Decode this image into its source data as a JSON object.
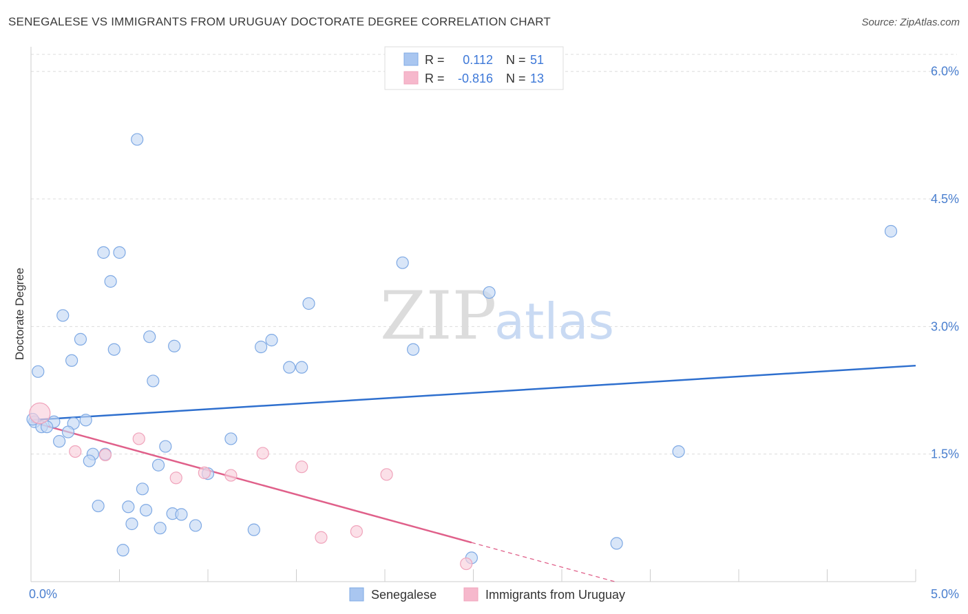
{
  "title": "SENEGALESE VS IMMIGRANTS FROM URUGUAY DOCTORATE DEGREE CORRELATION CHART",
  "source": "Source: ZipAtlas.com",
  "watermark": {
    "zip": "ZIP",
    "atlas": "atlas"
  },
  "chart_data": {
    "type": "scatter",
    "title": "SENEGALESE VS IMMIGRANTS FROM URUGUAY DOCTORATE DEGREE CORRELATION CHART",
    "ylabel": "Doctorate Degree",
    "xlabel": "",
    "xlim": [
      0.0,
      5.0
    ],
    "ylim": [
      0.0,
      6.2
    ],
    "x_tick_labels": [
      "0.0%",
      "5.0%"
    ],
    "y_ticks": [
      1.5,
      3.0,
      4.5,
      6.0
    ],
    "y_tick_labels": [
      "1.5%",
      "3.0%",
      "4.5%",
      "6.0%"
    ],
    "grid": "horizontal dashed",
    "legend_top": [
      {
        "r_label": "R =",
        "r_value": "0.112",
        "n_label": "N =",
        "n_value": "51",
        "color": "#a9c6f0"
      },
      {
        "r_label": "R =",
        "r_value": "-0.816",
        "n_label": "N =",
        "n_value": "13",
        "color": "#f6b8cc"
      }
    ],
    "legend_bottom": [
      "Senegalese",
      "Immigrants from Uruguay"
    ],
    "series": [
      {
        "name": "Senegalese",
        "color": "#7ea9e4",
        "fill": "#c5d9f4",
        "trend": {
          "x": [
            0.0,
            5.0
          ],
          "y": [
            1.9,
            2.54
          ],
          "color": "#2e6fce"
        },
        "points": [
          [
            0.6,
            5.2
          ],
          [
            0.41,
            3.87
          ],
          [
            0.5,
            3.87
          ],
          [
            0.45,
            3.53
          ],
          [
            0.18,
            3.13
          ],
          [
            0.28,
            2.85
          ],
          [
            0.67,
            2.88
          ],
          [
            0.47,
            2.73
          ],
          [
            0.81,
            2.77
          ],
          [
            0.23,
            2.6
          ],
          [
            0.04,
            2.47
          ],
          [
            0.69,
            2.36
          ],
          [
            0.31,
            1.9
          ],
          [
            0.24,
            1.86
          ],
          [
            0.13,
            1.88
          ],
          [
            0.02,
            1.88
          ],
          [
            0.06,
            1.82
          ],
          [
            0.09,
            1.82
          ],
          [
            0.21,
            1.76
          ],
          [
            0.16,
            1.65
          ],
          [
            0.76,
            1.59
          ],
          [
            1.13,
            1.68
          ],
          [
            0.35,
            1.5
          ],
          [
            0.42,
            1.5
          ],
          [
            0.33,
            1.42
          ],
          [
            0.72,
            1.37
          ],
          [
            1.0,
            1.27
          ],
          [
            0.63,
            1.09
          ],
          [
            0.38,
            0.89
          ],
          [
            0.55,
            0.88
          ],
          [
            0.65,
            0.84
          ],
          [
            0.8,
            0.8
          ],
          [
            0.85,
            0.79
          ],
          [
            0.57,
            0.68
          ],
          [
            0.73,
            0.63
          ],
          [
            0.93,
            0.66
          ],
          [
            1.26,
            0.61
          ],
          [
            0.52,
            0.37
          ],
          [
            1.3,
            2.76
          ],
          [
            1.36,
            2.84
          ],
          [
            1.46,
            2.52
          ],
          [
            1.53,
            2.52
          ],
          [
            1.57,
            3.27
          ],
          [
            2.1,
            3.75
          ],
          [
            2.16,
            2.73
          ],
          [
            2.59,
            3.4
          ],
          [
            3.66,
            1.53
          ],
          [
            3.31,
            0.45
          ],
          [
            2.49,
            0.28
          ],
          [
            4.86,
            4.12
          ],
          [
            0.01,
            1.91
          ]
        ]
      },
      {
        "name": "Immigrants from Uruguay",
        "color": "#f0a3bb",
        "fill": "#f9cfdc",
        "trend": {
          "x": [
            0.0,
            2.49
          ],
          "y": [
            1.88,
            0.46
          ],
          "color": "#e0608a",
          "dash_to": {
            "x": 3.3,
            "y": 0.0
          }
        },
        "points": [
          [
            0.05,
            1.98
          ],
          [
            0.25,
            1.53
          ],
          [
            0.42,
            1.49
          ],
          [
            0.61,
            1.68
          ],
          [
            0.82,
            1.22
          ],
          [
            0.98,
            1.28
          ],
          [
            1.13,
            1.25
          ],
          [
            1.31,
            1.51
          ],
          [
            1.53,
            1.35
          ],
          [
            2.01,
            1.26
          ],
          [
            1.64,
            0.52
          ],
          [
            1.84,
            0.59
          ],
          [
            2.46,
            0.21
          ]
        ]
      }
    ]
  }
}
